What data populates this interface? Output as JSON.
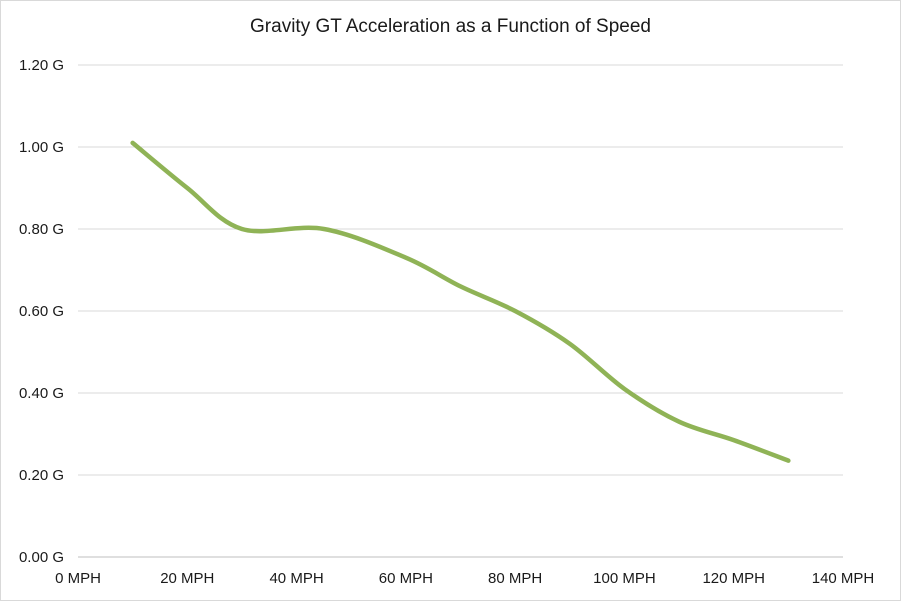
{
  "chart_data": {
    "type": "line",
    "title": "Gravity GT Acceleration as a Function of Speed",
    "xlabel": "",
    "ylabel": "",
    "x_ticks": [
      "0 MPH",
      "20 MPH",
      "40 MPH",
      "60 MPH",
      "80 MPH",
      "100 MPH",
      "120 MPH",
      "140 MPH"
    ],
    "y_ticks": [
      "0.00 G",
      "0.20 G",
      "0.40 G",
      "0.60 G",
      "0.80 G",
      "1.00 G",
      "1.20 G"
    ],
    "xlim": [
      0,
      140
    ],
    "ylim": [
      0,
      1.2
    ],
    "grid": "horizontal",
    "legend": "none",
    "smooth": true,
    "series": [
      {
        "color": "#8fb356",
        "points": [
          {
            "x": 10,
            "y": 1.01
          },
          {
            "x": 20,
            "y": 0.9
          },
          {
            "x": 30,
            "y": 0.8
          },
          {
            "x": 45,
            "y": 0.8
          },
          {
            "x": 60,
            "y": 0.73
          },
          {
            "x": 70,
            "y": 0.66
          },
          {
            "x": 80,
            "y": 0.6
          },
          {
            "x": 90,
            "y": 0.52
          },
          {
            "x": 100,
            "y": 0.41
          },
          {
            "x": 110,
            "y": 0.33
          },
          {
            "x": 120,
            "y": 0.285
          },
          {
            "x": 130,
            "y": 0.235
          }
        ]
      }
    ]
  }
}
